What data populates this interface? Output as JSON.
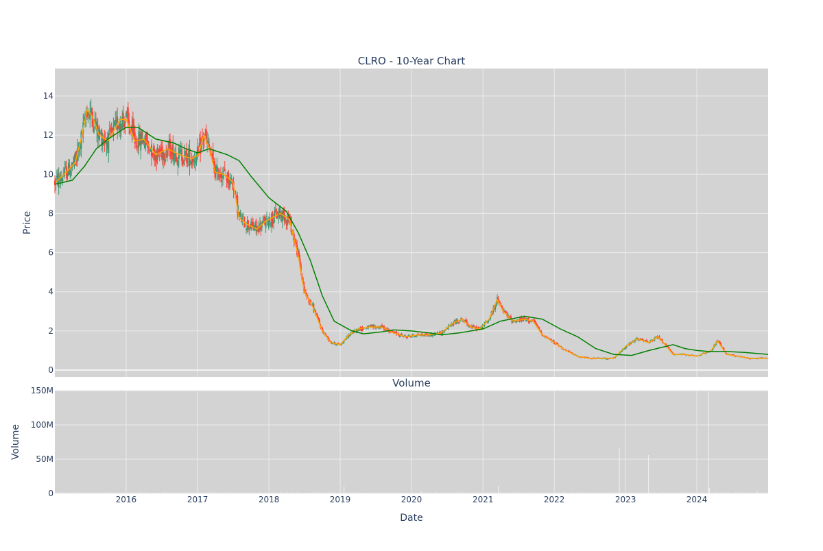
{
  "chart_data": [
    {
      "type": "candlestick",
      "title": "CLRO - 10-Year Chart",
      "ylabel": "Price",
      "ylim": [
        -0.35,
        15.4
      ],
      "yticks": [
        0,
        2,
        4,
        6,
        8,
        10,
        12,
        14
      ],
      "x_range": [
        "2015-01-01",
        "2024-12-31"
      ],
      "grid": true,
      "colors": {
        "increasing": "#3d9970",
        "decreasing": "#ff4136",
        "ma_short": "#ffa500",
        "ma_long": "#008000",
        "background": "#d3d3d3"
      },
      "series": [
        {
          "name": "",
          "type": "line",
          "color": "#ffa500",
          "x": [
            "2015-01-05",
            "2015-03-01",
            "2015-04-15",
            "2015-05-15",
            "2015-06-15",
            "2015-07-15",
            "2015-08-15",
            "2015-10-01",
            "2015-12-01",
            "2016-01-01",
            "2016-02-15",
            "2016-04-01",
            "2016-06-01",
            "2016-08-01",
            "2016-10-01",
            "2016-12-01",
            "2017-01-05",
            "2017-02-01",
            "2017-03-01",
            "2017-04-01",
            "2017-05-15",
            "2017-07-01",
            "2017-08-01",
            "2017-09-01",
            "2017-11-01",
            "2017-12-15",
            "2018-03-01",
            "2018-04-15",
            "2018-06-01",
            "2018-07-01",
            "2018-08-15",
            "2018-10-01",
            "2018-11-15",
            "2019-01-01",
            "2019-02-15",
            "2019-04-01",
            "2019-06-01",
            "2019-08-01",
            "2019-10-01",
            "2019-12-01",
            "2020-02-01",
            "2020-04-01",
            "2020-06-01",
            "2020-08-01",
            "2020-09-15",
            "2020-11-01",
            "2020-12-15",
            "2021-02-01",
            "2021-03-15",
            "2021-04-15",
            "2021-06-01",
            "2021-08-01",
            "2021-09-15",
            "2021-11-01",
            "2022-01-01",
            "2022-03-01",
            "2022-05-01",
            "2022-07-01",
            "2022-09-01",
            "2022-11-01",
            "2023-01-01",
            "2023-03-01",
            "2023-05-01",
            "2023-06-15",
            "2023-07-15",
            "2023-09-01",
            "2023-11-01",
            "2024-01-01",
            "2024-02-15",
            "2024-03-15",
            "2024-04-15",
            "2024-06-01",
            "2024-08-01",
            "2024-10-01",
            "2024-12-31"
          ],
          "values": [
            9.6,
            10.1,
            10.6,
            11.8,
            13.3,
            12.9,
            12.0,
            11.7,
            12.8,
            12.8,
            11.7,
            11.8,
            11.0,
            11.3,
            11.0,
            10.8,
            11.0,
            12.0,
            11.3,
            10.1,
            10.0,
            9.6,
            7.8,
            7.5,
            7.2,
            7.6,
            8.0,
            7.7,
            5.8,
            4.0,
            3.2,
            2.0,
            1.4,
            1.3,
            1.8,
            2.1,
            2.2,
            2.2,
            1.9,
            1.7,
            1.8,
            1.8,
            1.9,
            2.4,
            2.6,
            2.2,
            2.1,
            2.6,
            3.6,
            3.0,
            2.5,
            2.6,
            2.5,
            1.8,
            1.4,
            1.0,
            0.7,
            0.6,
            0.6,
            0.6,
            1.2,
            1.6,
            1.4,
            1.7,
            1.4,
            0.8,
            0.8,
            0.7,
            0.9,
            1.0,
            1.5,
            0.8,
            0.7,
            0.6,
            0.6
          ]
        },
        {
          "name": "",
          "type": "line",
          "color": "#008000",
          "x": [
            "2015-01-05",
            "2015-04-01",
            "2015-06-01",
            "2015-08-01",
            "2015-10-01",
            "2016-01-01",
            "2016-03-01",
            "2016-06-01",
            "2016-09-01",
            "2016-11-01",
            "2017-01-01",
            "2017-03-01",
            "2017-06-01",
            "2017-08-01",
            "2017-10-01",
            "2018-01-01",
            "2018-04-01",
            "2018-06-01",
            "2018-08-01",
            "2018-10-01",
            "2018-12-01",
            "2019-03-01",
            "2019-05-01",
            "2019-08-01",
            "2019-10-01",
            "2020-01-01",
            "2020-04-01",
            "2020-06-01",
            "2020-09-01",
            "2020-11-01",
            "2021-01-01",
            "2021-04-01",
            "2021-08-01",
            "2021-11-01",
            "2022-02-01",
            "2022-05-01",
            "2022-08-01",
            "2022-11-01",
            "2023-02-01",
            "2023-05-01",
            "2023-09-01",
            "2023-11-01",
            "2024-01-01",
            "2024-03-01",
            "2024-06-01",
            "2024-09-01",
            "2024-12-31"
          ],
          "values": [
            9.5,
            9.7,
            10.4,
            11.3,
            11.8,
            12.4,
            12.4,
            11.8,
            11.6,
            11.3,
            11.1,
            11.3,
            11.0,
            10.7,
            9.9,
            8.8,
            8.1,
            7.0,
            5.6,
            3.8,
            2.5,
            2.0,
            1.85,
            1.95,
            2.05,
            2.0,
            1.9,
            1.8,
            1.9,
            2.0,
            2.1,
            2.5,
            2.75,
            2.6,
            2.1,
            1.7,
            1.1,
            0.8,
            0.75,
            1.0,
            1.3,
            1.1,
            1.0,
            0.95,
            0.95,
            0.9,
            0.8
          ]
        }
      ]
    },
    {
      "type": "bar",
      "title": "Volume",
      "xlabel": "Date",
      "ylabel": "Volume",
      "ylim": [
        0,
        150000000
      ],
      "yticks": [
        0,
        50000000,
        100000000,
        150000000
      ],
      "ytick_labels": [
        "0",
        "50M",
        "100M",
        "150M"
      ],
      "xtick_labels": [
        "2016",
        "2017",
        "2018",
        "2019",
        "2020",
        "2021",
        "2022",
        "2023",
        "2024"
      ],
      "xticks": [
        "2016-01-01",
        "2017-01-01",
        "2018-01-01",
        "2019-01-01",
        "2020-01-01",
        "2021-01-01",
        "2022-01-01",
        "2023-01-01",
        "2024-01-01"
      ],
      "grid": true,
      "bars": {
        "x": [
          "2019-01-20",
          "2020-02-20",
          "2021-03-20",
          "2022-11-30",
          "2023-04-28",
          "2024-02-28",
          "2024-03-05",
          "2024-11-05"
        ],
        "values": [
          10000000,
          3000000,
          11000000,
          67000000,
          56000000,
          148000000,
          8000000,
          3000000
        ]
      },
      "baseline_volume": 1500000
    }
  ]
}
